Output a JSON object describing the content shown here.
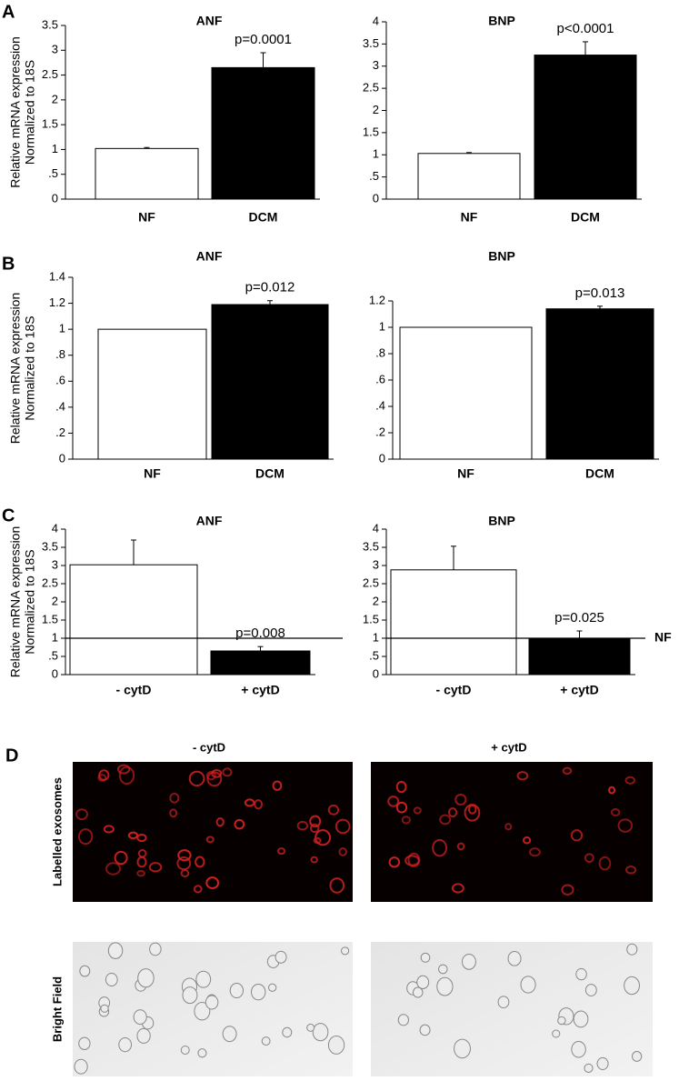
{
  "chart_data": [
    {
      "type": "bar",
      "panel_label": "A",
      "ylabel": [
        "Relative mRNA expression",
        "Normalized to 18S"
      ],
      "title": "ANF",
      "categories": [
        "NF",
        "DCM"
      ],
      "values": [
        1.02,
        2.65
      ],
      "errors": [
        0.02,
        0.3
      ],
      "colors": [
        "#ffffff",
        "#000000"
      ],
      "annotation": "p=0.0001",
      "ylim": [
        0,
        3.5
      ],
      "yticks": [
        0,
        {
          "value": 0.5,
          "label": ".5"
        },
        1,
        1.5,
        2,
        2.5,
        3,
        3.5
      ]
    },
    {
      "type": "bar",
      "title": "BNP",
      "categories": [
        "NF",
        "DCM"
      ],
      "values": [
        1.03,
        3.25
      ],
      "errors": [
        0.02,
        0.3
      ],
      "colors": [
        "#ffffff",
        "#000000"
      ],
      "annotation": "p<0.0001",
      "ylim": [
        0,
        4
      ],
      "yticks": [
        0,
        {
          "value": 0.5,
          "label": ".5"
        },
        1,
        1.5,
        2,
        2.5,
        3,
        3.5,
        4
      ]
    },
    {
      "type": "bar",
      "panel_label": "B",
      "ylabel": [
        "Relative mRNA expression",
        "Normalized to 18S"
      ],
      "title": "ANF",
      "categories": [
        "NF",
        "DCM"
      ],
      "values": [
        1.0,
        1.19
      ],
      "errors": [
        0,
        0.03
      ],
      "colors": [
        "#ffffff",
        "#000000"
      ],
      "annotation": "p=0.012",
      "ylim": [
        0,
        1.4
      ],
      "yticks": [
        0,
        {
          "value": 0.2,
          "label": ".2"
        },
        {
          "value": 0.4,
          "label": ".4"
        },
        {
          "value": 0.6,
          "label": ".6"
        },
        {
          "value": 0.8,
          "label": ".8"
        },
        1,
        1.2,
        1.4
      ]
    },
    {
      "type": "bar",
      "title": "BNP",
      "categories": [
        "NF",
        "DCM"
      ],
      "values": [
        1.0,
        1.14
      ],
      "errors": [
        0,
        0.02
      ],
      "colors": [
        "#ffffff",
        "#000000"
      ],
      "annotation": "p=0.013",
      "ylim": [
        0,
        1.2
      ],
      "yticks": [
        0,
        {
          "value": 0.2,
          "label": ".2"
        },
        {
          "value": 0.4,
          "label": ".4"
        },
        {
          "value": 0.6,
          "label": ".6"
        },
        {
          "value": 0.8,
          "label": ".8"
        },
        1,
        1.2
      ]
    },
    {
      "type": "bar",
      "panel_label": "C",
      "ylabel": [
        "Relative mRNA expression",
        "Normalized to 18S"
      ],
      "title": "ANF",
      "categories": [
        "- cytD",
        "+ cytD"
      ],
      "values": [
        3.02,
        0.65
      ],
      "errors": [
        0.68,
        0.12
      ],
      "colors": [
        "#ffffff",
        "#000000"
      ],
      "annotation": "p=0.008",
      "hline": 1,
      "ylim": [
        0,
        4
      ],
      "yticks": [
        0,
        {
          "value": 0.5,
          "label": ".5"
        },
        1,
        1.5,
        2,
        2.5,
        3,
        3.5,
        4
      ]
    },
    {
      "type": "bar",
      "title": "BNP",
      "categories": [
        "- cytD",
        "+ cytD"
      ],
      "values": [
        2.88,
        1.0
      ],
      "errors": [
        0.65,
        0.2
      ],
      "colors": [
        "#ffffff",
        "#000000"
      ],
      "annotation": "p=0.025",
      "hline": 1,
      "hline_label": "NF",
      "ylim": [
        0,
        4
      ],
      "yticks": [
        0,
        {
          "value": 0.5,
          "label": ".5"
        },
        1,
        1.5,
        2,
        2.5,
        3,
        3.5,
        4
      ]
    }
  ],
  "panel_d": {
    "label": "D",
    "columns": [
      "- cytD",
      "+ cytD"
    ],
    "rows": [
      "Labelled exosomes",
      "Bright Field"
    ]
  }
}
